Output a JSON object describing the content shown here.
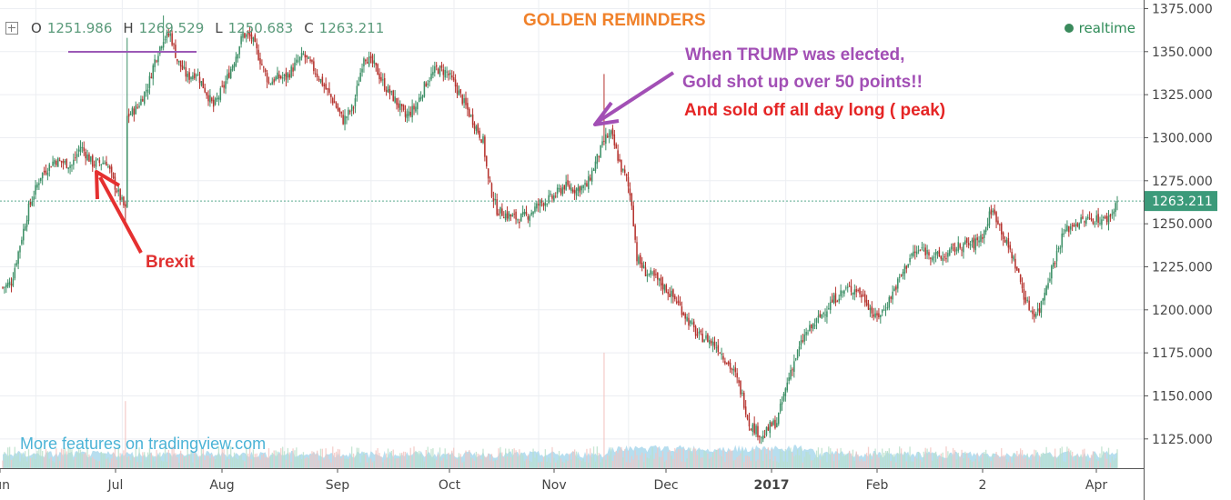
{
  "header": {
    "ohlc": [
      {
        "label": "O",
        "value": "1251.986"
      },
      {
        "label": "H",
        "value": "1269.529"
      },
      {
        "label": "L",
        "value": "1250.683"
      },
      {
        "label": "C",
        "value": "1263.211"
      }
    ],
    "realtime_label": "realtime"
  },
  "annotations": {
    "title": "GOLDEN REMINDERS",
    "trump_line1": "When TRUMP was elected,",
    "trump_line2": "Gold shot up over 50 points!!",
    "sold_off": "And sold off all day long ( peak)",
    "brexit": "Brexit"
  },
  "watermark": "More features on tradingview.com",
  "colors": {
    "up": "#3c8f66",
    "down": "#b5322d",
    "title": "#f0812a",
    "trump_text": "#a24fb5",
    "red_text": "#e52525",
    "last_price_bg": "#3c9a7a",
    "volume_area": "#9fd3ea"
  },
  "chart_data": {
    "type": "candlestick",
    "y_axis": {
      "range": [
        1108,
        1380
      ],
      "ticks": [
        "1375.000",
        "1350.000",
        "1325.000",
        "1300.000",
        "1275.000",
        "1250.000",
        "1225.000",
        "1200.000",
        "1175.000",
        "1150.000",
        "1125.000"
      ],
      "tick_values": [
        1375,
        1350,
        1325,
        1300,
        1275,
        1250,
        1225,
        1200,
        1175,
        1150,
        1125
      ]
    },
    "x_axis": {
      "labels": [
        "Jun",
        "Jul",
        "Aug",
        "Sep",
        "Oct",
        "Nov",
        "Dec",
        "2017",
        "Feb",
        "2",
        "Apr"
      ]
    },
    "last_price": "1263.211",
    "last_price_value": 1263.211,
    "anchors": [
      [
        0,
        1213
      ],
      [
        5,
        1216
      ],
      [
        10,
        1238
      ],
      [
        15,
        1259
      ],
      [
        22,
        1278
      ],
      [
        30,
        1287
      ],
      [
        40,
        1284
      ],
      [
        45,
        1295
      ],
      [
        52,
        1285
      ],
      [
        60,
        1286
      ],
      [
        65,
        1272
      ],
      [
        71,
        1258
      ],
      [
        72,
        1312
      ],
      [
        78,
        1318
      ],
      [
        84,
        1330
      ],
      [
        88,
        1345
      ],
      [
        93,
        1358
      ],
      [
        97,
        1360
      ],
      [
        101,
        1345
      ],
      [
        107,
        1335
      ],
      [
        112,
        1338
      ],
      [
        117,
        1328
      ],
      [
        122,
        1318
      ],
      [
        128,
        1330
      ],
      [
        134,
        1345
      ],
      [
        139,
        1360
      ],
      [
        144,
        1358
      ],
      [
        149,
        1345
      ],
      [
        154,
        1332
      ],
      [
        159,
        1335
      ],
      [
        164,
        1335
      ],
      [
        169,
        1342
      ],
      [
        174,
        1348
      ],
      [
        180,
        1340
      ],
      [
        186,
        1330
      ],
      [
        192,
        1320
      ],
      [
        197,
        1310
      ],
      [
        203,
        1318
      ],
      [
        209,
        1348
      ],
      [
        215,
        1342
      ],
      [
        221,
        1330
      ],
      [
        227,
        1322
      ],
      [
        233,
        1312
      ],
      [
        239,
        1318
      ],
      [
        245,
        1332
      ],
      [
        251,
        1340
      ],
      [
        257,
        1338
      ],
      [
        262,
        1330
      ],
      [
        268,
        1318
      ],
      [
        273,
        1308
      ],
      [
        278,
        1298
      ],
      [
        281,
        1275
      ],
      [
        286,
        1258
      ],
      [
        292,
        1255
      ],
      [
        298,
        1253
      ],
      [
        304,
        1255
      ],
      [
        311,
        1262
      ],
      [
        318,
        1265
      ],
      [
        325,
        1272
      ],
      [
        331,
        1270
      ],
      [
        338,
        1272
      ],
      [
        344,
        1288
      ],
      [
        349,
        1300
      ],
      [
        352,
        1302
      ],
      [
        355,
        1292
      ],
      [
        358,
        1282
      ],
      [
        361,
        1276
      ],
      [
        364,
        1262
      ],
      [
        367,
        1230
      ],
      [
        372,
        1222
      ],
      [
        378,
        1218
      ],
      [
        384,
        1212
      ],
      [
        390,
        1205
      ],
      [
        396,
        1195
      ],
      [
        402,
        1185
      ],
      [
        408,
        1183
      ],
      [
        414,
        1178
      ],
      [
        419,
        1170
      ],
      [
        424,
        1162
      ],
      [
        428,
        1150
      ],
      [
        432,
        1134
      ],
      [
        436,
        1130
      ],
      [
        440,
        1126
      ],
      [
        444,
        1132
      ],
      [
        448,
        1135
      ],
      [
        452,
        1150
      ],
      [
        456,
        1165
      ],
      [
        460,
        1175
      ],
      [
        464,
        1185
      ],
      [
        470,
        1192
      ],
      [
        476,
        1200
      ],
      [
        482,
        1207
      ],
      [
        488,
        1212
      ],
      [
        494,
        1212
      ],
      [
        500,
        1205
      ],
      [
        505,
        1195
      ],
      [
        510,
        1200
      ],
      [
        515,
        1210
      ],
      [
        520,
        1220
      ],
      [
        526,
        1232
      ],
      [
        532,
        1235
      ],
      [
        538,
        1232
      ],
      [
        544,
        1230
      ],
      [
        550,
        1235
      ],
      [
        556,
        1238
      ],
      [
        562,
        1238
      ],
      [
        568,
        1245
      ],
      [
        572,
        1258
      ],
      [
        576,
        1252
      ],
      [
        580,
        1240
      ],
      [
        584,
        1232
      ],
      [
        588,
        1220
      ],
      [
        592,
        1205
      ],
      [
        596,
        1198
      ],
      [
        600,
        1200
      ],
      [
        604,
        1215
      ],
      [
        609,
        1230
      ],
      [
        614,
        1245
      ],
      [
        620,
        1250
      ],
      [
        626,
        1252
      ],
      [
        632,
        1253
      ],
      [
        638,
        1252
      ],
      [
        642,
        1256
      ],
      [
        645,
        1263.2
      ]
    ],
    "spikes": [
      {
        "index": 71,
        "value": 1250.5
      },
      {
        "index": 72,
        "value": 1358
      },
      {
        "index": 348,
        "value": 1337
      },
      {
        "index": 93,
        "value": 1371
      }
    ],
    "volume_spikes": [
      {
        "index": 71,
        "value": 0.36
      },
      {
        "index": 348,
        "value": 0.62
      }
    ]
  }
}
